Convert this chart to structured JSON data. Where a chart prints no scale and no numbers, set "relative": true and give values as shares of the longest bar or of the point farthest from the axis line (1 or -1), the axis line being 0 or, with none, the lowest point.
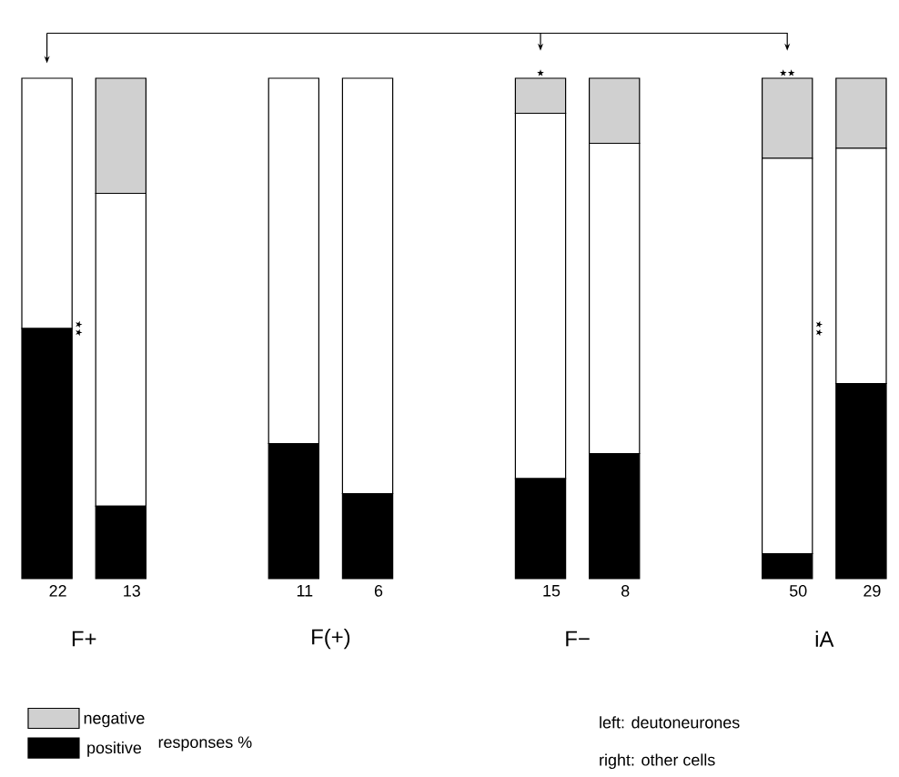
{
  "chart_data": {
    "type": "bar",
    "stacked": true,
    "relative": true,
    "categories": [
      "22",
      "13",
      "11",
      "6",
      "15",
      "8",
      "50",
      "29"
    ],
    "series": [
      {
        "name": "positive",
        "color": "#000000",
        "values": [
          0.5,
          0.145,
          0.27,
          0.17,
          0.2,
          0.25,
          0.05,
          0.39
        ]
      },
      {
        "color": "#ffffff",
        "values": [
          0.5,
          0.625,
          0.73,
          0.83,
          0.73,
          0.62,
          0.79,
          0.47
        ]
      },
      {
        "name": "negative",
        "color": "#d0d0d0",
        "values": [
          0,
          0.23,
          0,
          0,
          0.07,
          0.13,
          0.16,
          0.14
        ]
      }
    ],
    "legend": "bottom left",
    "legend_title": "responses %",
    "annotations": [
      "F+",
      "F(+)",
      "F−",
      "iA",
      "left: deutoneurones",
      "right: other cells",
      "★★",
      "★",
      "★★",
      "★★"
    ]
  }
}
